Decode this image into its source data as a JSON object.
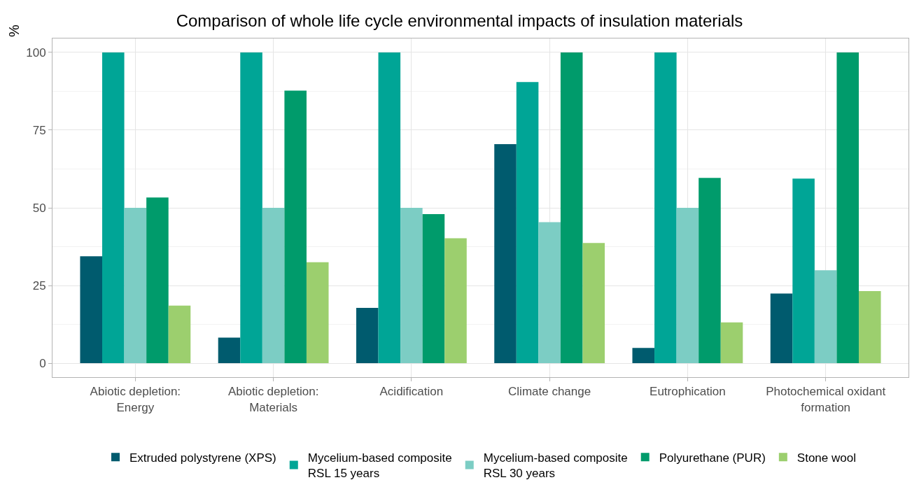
{
  "chart_data": {
    "type": "bar",
    "title": "Comparison of whole life cycle environmental impacts of insulation materials",
    "ylabel": "%",
    "categories": [
      "Abiotic depletion:\nEnergy",
      "Abiotic depletion:\nMaterials",
      "Acidification",
      "Climate change",
      "Eutrophication",
      "Photochemical oxidant\nformation"
    ],
    "series": [
      {
        "name": "Extruded polystyrene (XPS)",
        "color": "#005b6e",
        "values": [
          34.4,
          8.2,
          17.8,
          70.5,
          4.9,
          22.4
        ]
      },
      {
        "name": "Mycelium-based composite\nRSL 15 years",
        "color": "#00a596",
        "values": [
          100,
          100,
          100,
          90.5,
          100,
          59.4
        ]
      },
      {
        "name": "Mycelium-based composite\nRSL 30 years",
        "color": "#7ccdc4",
        "values": [
          50,
          50,
          50,
          45.4,
          50,
          29.9
        ]
      },
      {
        "name": "Polyurethane (PUR)",
        "color": "#009b6b",
        "values": [
          53.3,
          87.7,
          48.0,
          100,
          59.6,
          100
        ]
      },
      {
        "name": "Stone wool",
        "color": "#9ccf6e",
        "values": [
          18.5,
          32.5,
          40.2,
          38.7,
          13.1,
          23.2
        ]
      }
    ],
    "ylim": [
      -4.5,
      104.5
    ],
    "yticks": [
      0,
      25,
      50,
      75,
      100
    ],
    "grid": true,
    "legend": "bottom"
  }
}
